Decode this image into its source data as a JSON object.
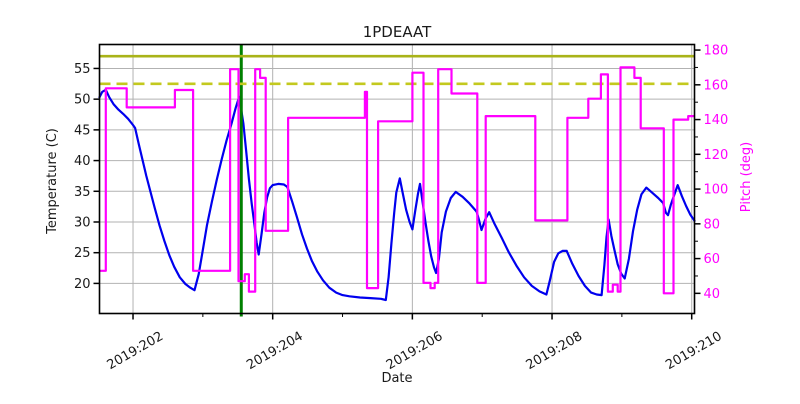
{
  "chart_data": {
    "type": "line",
    "title": "1PDEAAT",
    "xlabel": "Date",
    "ylabel_left": "Temperature (C)",
    "ylabel_right": "Pitch (deg)",
    "grid": true,
    "legend": "none",
    "xlim": [
      201.52,
      210.04
    ],
    "ylim_left": [
      15.1,
      58.9
    ],
    "ylim_right": [
      28.4,
      183.2
    ],
    "x_ticks": [
      {
        "label": "2019:202",
        "day": 202
      },
      {
        "label": "2019:204",
        "day": 204
      },
      {
        "label": "2019:206",
        "day": 206
      },
      {
        "label": "2019:208",
        "day": 208
      },
      {
        "label": "2019:210",
        "day": 210
      }
    ],
    "x_minor_days": [
      203,
      205,
      207,
      209
    ],
    "y_ticks_left": [
      {
        "label": "20",
        "value": 20
      },
      {
        "label": "25",
        "value": 25
      },
      {
        "label": "30",
        "value": 30
      },
      {
        "label": "35",
        "value": 35
      },
      {
        "label": "40",
        "value": 40
      },
      {
        "label": "45",
        "value": 45
      },
      {
        "label": "50",
        "value": 50
      },
      {
        "label": "55",
        "value": 55
      }
    ],
    "y_ticks_right": [
      {
        "label": "40",
        "value": 40
      },
      {
        "label": "60",
        "value": 60
      },
      {
        "label": "80",
        "value": 80
      },
      {
        "label": "100",
        "value": 100
      },
      {
        "label": "120",
        "value": 120
      },
      {
        "label": "140",
        "value": 140
      },
      {
        "label": "160",
        "value": 160
      },
      {
        "label": "180",
        "value": 180
      }
    ],
    "y_minor_right_step": 10,
    "style": {
      "temperature_color": "#0000ee",
      "pitch_color": "#ff00ff",
      "solid_limit_color": "#a9b318",
      "dashed_limit_color": "#c3c91e",
      "vline_color": "#008000",
      "grid_color": "#b2b2b2",
      "spine_color": "#000000",
      "tick_label_color": "#1a1a1a"
    },
    "limit_lines": [
      {
        "name": "yellow-limit",
        "axis": "left",
        "value": 57.0,
        "style": "solid"
      },
      {
        "name": "planning-limit",
        "axis": "left",
        "value": 52.5,
        "style": "dashed"
      }
    ],
    "vline": {
      "day": 203.55
    },
    "series": [
      {
        "name": "temperature",
        "axis": "left",
        "mode": "line",
        "points": [
          [
            201.52,
            50.3
          ],
          [
            201.56,
            51.2
          ],
          [
            201.61,
            51.5
          ],
          [
            201.66,
            50.3
          ],
          [
            201.72,
            49.2
          ],
          [
            201.79,
            48.3
          ],
          [
            201.86,
            47.6
          ],
          [
            201.93,
            46.8
          ],
          [
            202.0,
            45.8
          ],
          [
            202.03,
            45.3
          ],
          [
            202.08,
            42.8
          ],
          [
            202.13,
            40.4
          ],
          [
            202.19,
            37.5
          ],
          [
            202.25,
            34.9
          ],
          [
            202.31,
            32.3
          ],
          [
            202.38,
            29.4
          ],
          [
            202.45,
            26.9
          ],
          [
            202.52,
            24.6
          ],
          [
            202.59,
            22.7
          ],
          [
            202.67,
            21.0
          ],
          [
            202.75,
            19.9
          ],
          [
            202.82,
            19.3
          ],
          [
            202.88,
            18.9
          ],
          [
            202.94,
            21.5
          ],
          [
            203.0,
            25.5
          ],
          [
            203.06,
            29.5
          ],
          [
            203.13,
            33.3
          ],
          [
            203.2,
            36.9
          ],
          [
            203.27,
            40.2
          ],
          [
            203.34,
            43.3
          ],
          [
            203.41,
            46.0
          ],
          [
            203.47,
            48.6
          ],
          [
            203.52,
            50.4
          ],
          [
            203.58,
            46.0
          ],
          [
            203.62,
            41.5
          ],
          [
            203.66,
            37.0
          ],
          [
            203.7,
            33.0
          ],
          [
            203.74,
            29.5
          ],
          [
            203.77,
            26.7
          ],
          [
            203.8,
            24.7
          ],
          [
            203.84,
            28.0
          ],
          [
            203.88,
            31.5
          ],
          [
            203.92,
            34.0
          ],
          [
            203.96,
            35.5
          ],
          [
            204.0,
            36.0
          ],
          [
            204.08,
            36.2
          ],
          [
            204.16,
            36.1
          ],
          [
            204.21,
            35.7
          ],
          [
            204.28,
            33.3
          ],
          [
            204.35,
            30.7
          ],
          [
            204.42,
            28.0
          ],
          [
            204.49,
            25.7
          ],
          [
            204.56,
            23.7
          ],
          [
            204.64,
            21.9
          ],
          [
            204.72,
            20.5
          ],
          [
            204.81,
            19.3
          ],
          [
            204.91,
            18.5
          ],
          [
            205.0,
            18.1
          ],
          [
            205.1,
            17.9
          ],
          [
            205.25,
            17.7
          ],
          [
            205.4,
            17.6
          ],
          [
            205.55,
            17.5
          ],
          [
            205.62,
            17.3
          ],
          [
            205.66,
            21.0
          ],
          [
            205.7,
            26.5
          ],
          [
            205.74,
            31.5
          ],
          [
            205.77,
            34.8
          ],
          [
            205.82,
            37.1
          ],
          [
            205.86,
            34.8
          ],
          [
            205.91,
            32.0
          ],
          [
            205.96,
            30.0
          ],
          [
            206.0,
            28.8
          ],
          [
            206.04,
            31.8
          ],
          [
            206.08,
            34.6
          ],
          [
            206.11,
            36.2
          ],
          [
            206.15,
            33.0
          ],
          [
            206.19,
            29.8
          ],
          [
            206.23,
            26.9
          ],
          [
            206.27,
            24.4
          ],
          [
            206.31,
            22.6
          ],
          [
            206.34,
            21.7
          ],
          [
            206.38,
            24.0
          ],
          [
            206.42,
            28.3
          ],
          [
            206.48,
            31.7
          ],
          [
            206.55,
            33.9
          ],
          [
            206.62,
            34.9
          ],
          [
            206.72,
            34.1
          ],
          [
            206.82,
            33.0
          ],
          [
            206.92,
            31.7
          ],
          [
            206.95,
            30.5
          ],
          [
            206.99,
            28.7
          ],
          [
            207.05,
            30.6
          ],
          [
            207.1,
            31.6
          ],
          [
            207.18,
            29.6
          ],
          [
            207.28,
            27.4
          ],
          [
            207.38,
            25.1
          ],
          [
            207.49,
            22.9
          ],
          [
            207.6,
            21.0
          ],
          [
            207.71,
            19.6
          ],
          [
            207.82,
            18.7
          ],
          [
            207.92,
            18.2
          ],
          [
            207.97,
            20.5
          ],
          [
            208.03,
            23.5
          ],
          [
            208.09,
            24.9
          ],
          [
            208.15,
            25.3
          ],
          [
            208.21,
            25.3
          ],
          [
            208.29,
            23.2
          ],
          [
            208.38,
            21.2
          ],
          [
            208.47,
            19.6
          ],
          [
            208.56,
            18.5
          ],
          [
            208.64,
            18.2
          ],
          [
            208.71,
            18.1
          ],
          [
            208.75,
            23.0
          ],
          [
            208.78,
            27.5
          ],
          [
            208.81,
            30.4
          ],
          [
            208.85,
            27.7
          ],
          [
            208.89,
            25.6
          ],
          [
            208.94,
            23.1
          ],
          [
            208.99,
            21.6
          ],
          [
            209.04,
            20.8
          ],
          [
            209.1,
            24.0
          ],
          [
            209.16,
            28.5
          ],
          [
            209.22,
            32.0
          ],
          [
            209.28,
            34.5
          ],
          [
            209.35,
            35.6
          ],
          [
            209.44,
            34.7
          ],
          [
            209.52,
            33.9
          ],
          [
            209.59,
            33.1
          ],
          [
            209.63,
            31.5
          ],
          [
            209.66,
            31.1
          ],
          [
            209.7,
            32.8
          ],
          [
            209.75,
            34.4
          ],
          [
            209.8,
            36.0
          ],
          [
            209.86,
            34.2
          ],
          [
            209.92,
            32.6
          ],
          [
            209.98,
            31.2
          ],
          [
            210.04,
            30.2
          ]
        ]
      },
      {
        "name": "pitch",
        "axis": "right",
        "mode": "step",
        "end_day": 210.04,
        "steps": [
          [
            201.52,
            53
          ],
          [
            201.61,
            158
          ],
          [
            201.91,
            147
          ],
          [
            202.6,
            157
          ],
          [
            202.86,
            53
          ],
          [
            203.39,
            169
          ],
          [
            203.51,
            47
          ],
          [
            203.6,
            51
          ],
          [
            203.66,
            41
          ],
          [
            203.75,
            169
          ],
          [
            203.82,
            164
          ],
          [
            203.9,
            76
          ],
          [
            204.22,
            141
          ],
          [
            205.32,
            156
          ],
          [
            205.35,
            43
          ],
          [
            205.51,
            139
          ],
          [
            206.0,
            167
          ],
          [
            206.16,
            46
          ],
          [
            206.26,
            43
          ],
          [
            206.32,
            46
          ],
          [
            206.37,
            169
          ],
          [
            206.56,
            155
          ],
          [
            206.93,
            46
          ],
          [
            207.05,
            142
          ],
          [
            207.76,
            82
          ],
          [
            208.22,
            141
          ],
          [
            208.52,
            152
          ],
          [
            208.7,
            166
          ],
          [
            208.8,
            41
          ],
          [
            208.87,
            45
          ],
          [
            208.94,
            41
          ],
          [
            208.98,
            170
          ],
          [
            209.18,
            164
          ],
          [
            209.27,
            135
          ],
          [
            209.6,
            40
          ],
          [
            209.74,
            140
          ],
          [
            209.95,
            142
          ]
        ]
      }
    ]
  }
}
